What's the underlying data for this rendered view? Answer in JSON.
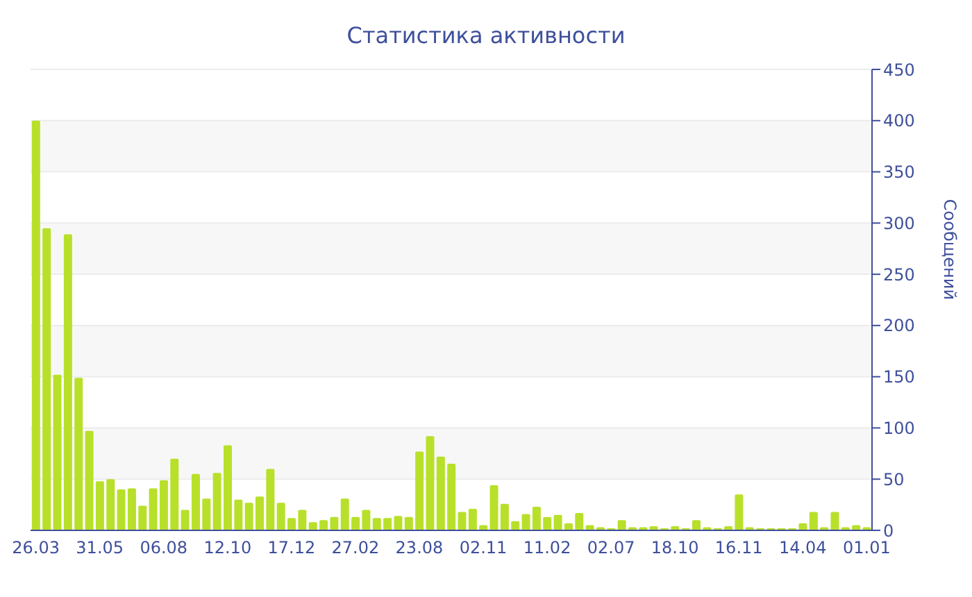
{
  "chart_data": {
    "type": "bar",
    "title": "Статистика активности",
    "ylabel": "Сообщений",
    "categories": [
      "26.03",
      null,
      null,
      null,
      null,
      null,
      "31.05",
      null,
      null,
      null,
      null,
      null,
      "06.08",
      null,
      null,
      null,
      null,
      null,
      "12.10",
      null,
      null,
      null,
      null,
      null,
      "17.12",
      null,
      null,
      null,
      null,
      null,
      "27.02",
      null,
      null,
      null,
      null,
      null,
      "23.08",
      null,
      null,
      null,
      null,
      null,
      "02.11",
      null,
      null,
      null,
      null,
      null,
      "11.02",
      null,
      null,
      null,
      null,
      null,
      "02.07",
      null,
      null,
      null,
      null,
      null,
      "18.10",
      null,
      null,
      null,
      null,
      null,
      "16.11",
      null,
      null,
      null,
      null,
      null,
      "14.04",
      null,
      null,
      null,
      null,
      null,
      "01.01"
    ],
    "values": [
      400,
      295,
      152,
      289,
      149,
      97,
      48,
      50,
      40,
      41,
      24,
      41,
      49,
      70,
      20,
      55,
      31,
      56,
      83,
      30,
      27,
      33,
      60,
      27,
      12,
      20,
      8,
      10,
      13,
      31,
      13,
      20,
      12,
      12,
      14,
      13,
      77,
      92,
      72,
      65,
      18,
      21,
      5,
      44,
      26,
      9,
      16,
      23,
      13,
      15,
      7,
      17,
      5,
      3,
      2,
      10,
      3,
      3,
      4,
      2,
      4,
      2,
      10,
      3,
      2,
      4,
      35,
      3,
      2,
      2,
      2,
      2,
      7,
      18,
      3,
      18,
      3,
      5,
      3
    ],
    "color": "#b8e02a",
    "ylim": [
      0,
      450
    ],
    "yticks": [
      0,
      50,
      100,
      150,
      200,
      250,
      300,
      350,
      400,
      450
    ],
    "grid": "y"
  }
}
